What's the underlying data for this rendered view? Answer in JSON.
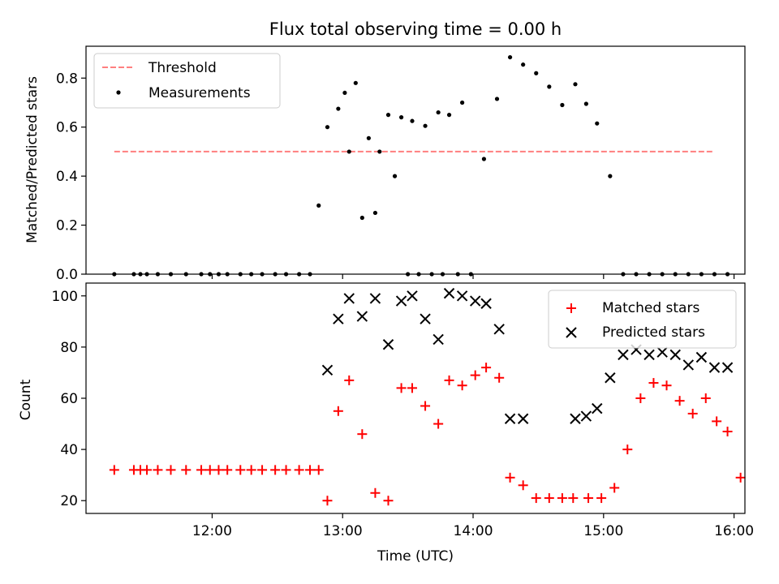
{
  "title": "Flux total observing time = 0.00 h",
  "colors": {
    "threshold": "#ff7f7f",
    "measurements": "#000000",
    "matched": "#ff0000",
    "predicted": "#000000"
  },
  "chart_data": [
    {
      "type": "scatter",
      "panel": "top",
      "title": "Flux total observing time = 0.00 h",
      "xlabel": "",
      "ylabel": "Matched/Predicted stars",
      "xlim": [
        "11:02",
        "16:05"
      ],
      "ylim": [
        0,
        0.93
      ],
      "y_ticks": [
        0.0,
        0.2,
        0.4,
        0.6,
        0.8
      ],
      "y_tick_labels": [
        "0.0",
        "0.2",
        "0.4",
        "0.6",
        "0.8"
      ],
      "x_tick_labels": [],
      "legend_position": "upper-left",
      "grid": false,
      "series": [
        {
          "name": "Threshold",
          "kind": "dashed-line",
          "x": [
            "11:15",
            "15:50"
          ],
          "y": [
            0.5,
            0.5
          ]
        },
        {
          "name": "Measurements",
          "kind": "points",
          "x": [
            "11:15",
            "11:24",
            "11:27",
            "11:30",
            "11:35",
            "11:41",
            "11:48",
            "11:55",
            "11:59",
            "12:03",
            "12:07",
            "12:13",
            "12:18",
            "12:23",
            "12:29",
            "12:34",
            "12:40",
            "12:45",
            "12:49",
            "12:53",
            "12:58",
            "13:03",
            "13:09",
            "13:15",
            "13:21",
            "13:27",
            "13:32",
            "13:38",
            "13:44",
            "13:49",
            "13:55",
            "13:01",
            "13:06",
            "13:12",
            "13:17",
            "13:24",
            "13:30",
            "13:35",
            "13:41",
            "13:46",
            "13:53",
            "13:59",
            "14:05",
            "14:11",
            "14:17",
            "14:23",
            "14:29",
            "14:35",
            "14:41",
            "14:47",
            "14:52",
            "14:57",
            "15:03",
            "15:09",
            "15:15",
            "15:21",
            "15:27",
            "15:33",
            "15:39",
            "15:45",
            "15:51",
            "15:57"
          ],
          "y": [
            0.0,
            0.0,
            0.0,
            0.0,
            0.0,
            0.0,
            0.0,
            0.0,
            0.0,
            0.0,
            0.0,
            0.0,
            0.0,
            0.0,
            0.0,
            0.0,
            0.0,
            0.0,
            0.28,
            0.6,
            0.675,
            0.5,
            0.23,
            0.25,
            0.65,
            0.64,
            0.625,
            0.605,
            0.66,
            0.65,
            0.7,
            0.74,
            0.78,
            0.555,
            0.5,
            0.4,
            0.0,
            0.0,
            0.0,
            0.0,
            0.0,
            0.0,
            0.47,
            0.715,
            0.885,
            0.855,
            0.82,
            0.765,
            0.69,
            0.775,
            0.695,
            0.615,
            0.4,
            0.0,
            0.0,
            0.0,
            0.0,
            0.0,
            0.0,
            0.0,
            0.0,
            0.0
          ]
        }
      ]
    },
    {
      "type": "scatter",
      "panel": "bottom",
      "xlabel": "Time (UTC)",
      "ylabel": "Count",
      "xlim": [
        "11:02",
        "16:05"
      ],
      "ylim": [
        15,
        105
      ],
      "y_ticks": [
        20,
        40,
        60,
        80,
        100
      ],
      "y_tick_labels": [
        "20",
        "40",
        "60",
        "80",
        "100"
      ],
      "x_ticks": [
        "12:00",
        "13:00",
        "14:00",
        "15:00",
        "16:00"
      ],
      "x_tick_labels": [
        "12:00",
        "13:00",
        "14:00",
        "15:00",
        "16:00"
      ],
      "legend_position": "upper-right",
      "grid": false,
      "series": [
        {
          "name": "Matched stars",
          "marker": "plus",
          "x": [
            "11:15",
            "11:24",
            "11:27",
            "11:30",
            "11:35",
            "11:41",
            "11:48",
            "11:55",
            "11:59",
            "12:03",
            "12:07",
            "12:13",
            "12:18",
            "12:23",
            "12:29",
            "12:34",
            "12:40",
            "12:45",
            "12:49",
            "12:53",
            "12:58",
            "13:03",
            "13:09",
            "13:15",
            "13:21",
            "13:27",
            "13:32",
            "13:38",
            "13:44",
            "13:49",
            "13:55",
            "14:01",
            "14:06",
            "14:12",
            "14:17",
            "14:23",
            "14:29",
            "14:35",
            "14:41",
            "14:46",
            "14:53",
            "14:59",
            "15:05",
            "15:11",
            "15:17",
            "15:23",
            "15:29",
            "15:35",
            "15:41",
            "15:47",
            "15:52",
            "15:57",
            "16:03"
          ],
          "y": [
            32,
            32,
            32,
            32,
            32,
            32,
            32,
            32,
            32,
            32,
            32,
            32,
            32,
            32,
            32,
            32,
            32,
            32,
            32,
            20,
            55,
            67,
            46,
            23,
            20,
            64,
            64,
            57,
            50,
            67,
            65,
            69,
            72,
            68,
            29,
            26,
            21,
            21,
            21,
            21,
            21,
            21,
            25,
            40,
            60,
            66,
            65,
            59,
            54,
            60,
            51,
            47,
            29
          ]
        },
        {
          "name": "Predicted stars",
          "marker": "x",
          "x": [
            "12:53",
            "12:58",
            "13:03",
            "13:09",
            "13:15",
            "13:21",
            "13:27",
            "13:32",
            "13:38",
            "13:44",
            "13:49",
            "13:55",
            "14:01",
            "14:06",
            "14:12",
            "14:17",
            "14:23",
            "14:47",
            "14:52",
            "14:57",
            "15:03",
            "15:09",
            "15:15",
            "15:21",
            "15:27",
            "15:33",
            "15:39",
            "15:45",
            "15:51",
            "15:57"
          ],
          "y": [
            71,
            91,
            99,
            92,
            99,
            81,
            98,
            100,
            91,
            83,
            101,
            100,
            98,
            97,
            87,
            52,
            52,
            52,
            53,
            56,
            68,
            77,
            79,
            77,
            78,
            77,
            73,
            76,
            72,
            72
          ]
        }
      ]
    }
  ]
}
